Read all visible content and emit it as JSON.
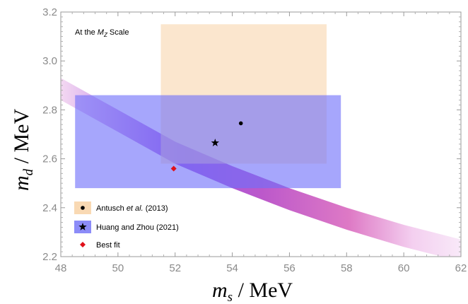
{
  "chart_data": {
    "type": "scatter",
    "title": "",
    "xlabel": {
      "main": "m",
      "sub": "s",
      "rest": " / MeV"
    },
    "ylabel": {
      "main": "m",
      "sub": "d",
      "rest": " / MeV"
    },
    "xlim": [
      48,
      62
    ],
    "ylim": [
      2.2,
      3.2
    ],
    "xticks": [
      "48",
      "50",
      "52",
      "54",
      "56",
      "58",
      "60",
      "62"
    ],
    "yticks": [
      "2.2",
      "2.4",
      "2.6",
      "2.8",
      "3.0",
      "3.2"
    ],
    "annotation": {
      "prefix": "At the ",
      "main": "M",
      "sub": "Z",
      "rest": " Scale"
    },
    "regions": [
      {
        "name": "Antusch et al. (2013)",
        "x": [
          51.5,
          57.3
        ],
        "y": [
          2.58,
          3.15
        ],
        "color": "#f9d9b3",
        "opacity": 0.65
      },
      {
        "name": "Huang and Zhou (2021)",
        "x": [
          48.5,
          57.8
        ],
        "y": [
          2.48,
          2.86
        ],
        "color": "#6f6ffa",
        "opacity": 0.62
      }
    ],
    "band": {
      "color": "#d24fb5",
      "upper": [
        [
          48,
          2.93
        ],
        [
          50,
          2.8
        ],
        [
          52,
          2.67
        ],
        [
          54,
          2.57
        ],
        [
          56,
          2.48
        ],
        [
          58,
          2.4
        ],
        [
          60,
          2.33
        ],
        [
          62,
          2.27
        ]
      ],
      "lower": [
        [
          48,
          2.84
        ],
        [
          50,
          2.71
        ],
        [
          52,
          2.58
        ],
        [
          54,
          2.48
        ],
        [
          56,
          2.39
        ],
        [
          58,
          2.31
        ],
        [
          60,
          2.24
        ],
        [
          62,
          2.18
        ]
      ]
    },
    "points": [
      {
        "name": "Antusch",
        "x": 54.3,
        "y": 2.745,
        "marker": "circle",
        "color": "#000000"
      },
      {
        "name": "Huang and Zhou",
        "x": 53.4,
        "y": 2.665,
        "marker": "star",
        "color": "#000000"
      },
      {
        "name": "Best fit",
        "x": 51.95,
        "y": 2.56,
        "marker": "diamond",
        "color": "#e0101a"
      }
    ],
    "legend": {
      "placement": "bottom-left",
      "entries": [
        {
          "text_plain": "Antusch ",
          "text_italic": "et al.",
          "text_rest": " (2013)",
          "marker": "circle",
          "swatch": "#f9d9b3"
        },
        {
          "text_plain": "Huang and Zhou (2021)",
          "text_italic": "",
          "text_rest": "",
          "marker": "star",
          "swatch": "#8c8cf8"
        },
        {
          "text_plain": "Best fit",
          "text_italic": "",
          "text_rest": "",
          "marker": "diamond",
          "swatch": ""
        }
      ]
    }
  }
}
